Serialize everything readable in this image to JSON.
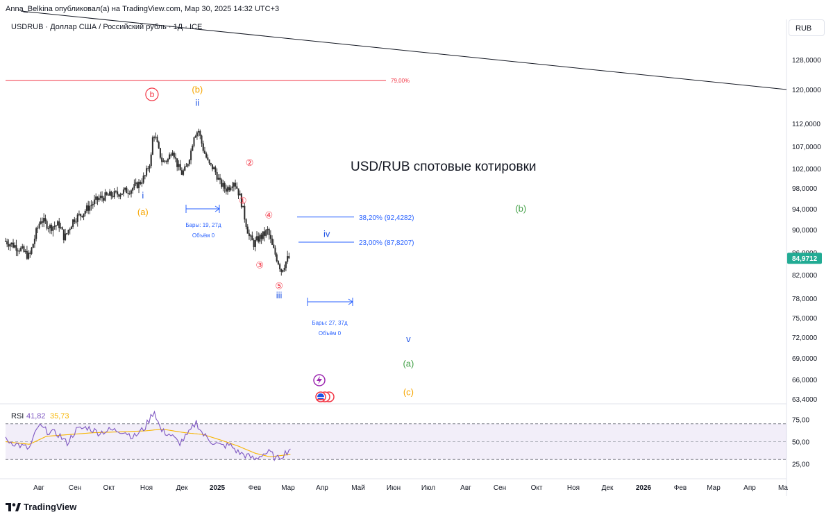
{
  "header": {
    "published_line": "Anna_Belkina опубликовал(а) на TradingView.com, Мар 30, 2025 14:32 UTC+3",
    "symbol_line": "USDRUB · Доллар США / Российский рубль · 1Д · ICE",
    "currency_button": "RUB"
  },
  "footer": {
    "brand": "TradingView"
  },
  "colors": {
    "up": "#26a69a",
    "down": "#ef5350",
    "candle": "#3a3a3a",
    "rsi": "#7e57c2",
    "rsi_ma": "#f7b500",
    "fib_red": "#f23645",
    "measure_blue": "#2962ff",
    "wave_red": "#f23645",
    "wave_orange": "#f7a600",
    "wave_blue": "#1e53e5",
    "wave_green": "#43a047",
    "last_price_bg": "#22ab94"
  },
  "chart_data": [
    {
      "type": "candlestick",
      "title": "USD/RUB спотовые котировки",
      "y_axis_labels": [
        "128,0000",
        "120,0000",
        "112,0000",
        "107,0000",
        "102,0000",
        "98,0000",
        "94,0000",
        "90,0000",
        "86,0000",
        "82,0000",
        "78,0000",
        "75,0000",
        "72,0000",
        "69,0000",
        "66,0000",
        "63,4000"
      ],
      "x_axis_labels": [
        "Авг",
        "Сен",
        "Окт",
        "Ноя",
        "Дек",
        "2025",
        "Фев",
        "Мар",
        "Апр",
        "Май",
        "Июн",
        "Июл",
        "Авг",
        "Сен",
        "Окт",
        "Ноя",
        "Дек",
        "2026",
        "Фев",
        "Мар",
        "Апр",
        "Ма"
      ],
      "last_price": "84,9712",
      "price_path": [
        [
          "2024-07-20",
          88.0
        ],
        [
          "2024-08-01",
          86.8
        ],
        [
          "2024-08-10",
          85.2
        ],
        [
          "2024-08-16",
          89.5
        ],
        [
          "2024-08-20",
          92.0
        ],
        [
          "2024-08-28",
          90.5
        ],
        [
          "2024-09-05",
          91.0
        ],
        [
          "2024-09-10",
          88.5
        ],
        [
          "2024-09-18",
          92.0
        ],
        [
          "2024-09-25",
          93.0
        ],
        [
          "2024-10-02",
          94.5
        ],
        [
          "2024-10-10",
          96.0
        ],
        [
          "2024-10-18",
          96.5
        ],
        [
          "2024-10-25",
          96.8
        ],
        [
          "2024-11-01",
          97.3
        ],
        [
          "2024-11-08",
          97.8
        ],
        [
          "2024-11-15",
          99.0
        ],
        [
          "2024-11-20",
          100.5
        ],
        [
          "2024-11-25",
          104.0
        ],
        [
          "2024-11-27",
          110.0
        ],
        [
          "2024-11-29",
          109.0
        ],
        [
          "2024-12-02",
          106.0
        ],
        [
          "2024-12-05",
          103.5
        ],
        [
          "2024-12-10",
          104.0
        ],
        [
          "2024-12-14",
          106.5
        ],
        [
          "2024-12-18",
          103.0
        ],
        [
          "2024-12-22",
          101.0
        ],
        [
          "2024-12-26",
          102.0
        ],
        [
          "2024-12-30",
          105.5
        ],
        [
          "2025-01-02",
          109.5
        ],
        [
          "2025-01-06",
          110.5
        ],
        [
          "2025-01-10",
          106.5
        ],
        [
          "2025-01-15",
          103.0
        ],
        [
          "2025-01-20",
          101.8
        ],
        [
          "2025-01-25",
          99.0
        ],
        [
          "2025-01-30",
          97.8
        ],
        [
          "2025-02-02",
          98.2
        ],
        [
          "2025-02-06",
          99.5
        ],
        [
          "2025-02-09",
          98.0
        ],
        [
          "2025-02-12",
          96.0
        ],
        [
          "2025-02-16",
          92.0
        ],
        [
          "2025-02-20",
          88.5
        ],
        [
          "2025-02-24",
          87.5
        ],
        [
          "2025-02-28",
          88.5
        ],
        [
          "2025-03-04",
          89.0
        ],
        [
          "2025-03-08",
          89.8
        ],
        [
          "2025-03-12",
          87.0
        ],
        [
          "2025-03-16",
          85.0
        ],
        [
          "2025-03-20",
          82.8
        ],
        [
          "2025-03-23",
          84.0
        ],
        [
          "2025-03-26",
          85.0
        ],
        [
          "2025-03-28",
          84.9712
        ]
      ],
      "annotations": {
        "fib_levels": [
          {
            "label": "79,00%"
          },
          {
            "label": "38,20% (92,4282)",
            "y": 92.4282
          },
          {
            "label": "23,00% (87,8207)",
            "y": 87.8207
          }
        ],
        "measurements": [
          {
            "bars": "Бары: 19, 27д",
            "volume": "Объём 0"
          },
          {
            "bars": "Бары: 27, 37д",
            "volume": "Объём 0"
          }
        ],
        "waves": [
          {
            "label": "b",
            "color": "wave_red",
            "circled": true,
            "date": "2024-11-26",
            "y": 118.2
          },
          {
            "label": "(b)",
            "color": "wave_orange",
            "date": "2025-01-05",
            "y": 119.3
          },
          {
            "label": "ii",
            "color": "wave_blue",
            "date": "2025-01-05",
            "y": 116.2
          },
          {
            "label": "i",
            "color": "wave_blue",
            "date": "2024-11-18",
            "y": 96.0
          },
          {
            "label": "(a)",
            "color": "wave_orange",
            "date": "2024-11-18",
            "y": 92.8
          },
          {
            "label": "①",
            "color": "wave_red",
            "date": "2025-02-14",
            "y": 95.0
          },
          {
            "label": "②",
            "color": "wave_red",
            "date": "2025-02-20",
            "y": 102.6
          },
          {
            "label": "③",
            "color": "wave_red",
            "date": "2025-03-01",
            "y": 83.2
          },
          {
            "label": "④",
            "color": "wave_red",
            "date": "2025-03-09",
            "y": 92.2
          },
          {
            "label": "⑤",
            "color": "wave_red",
            "date": "2025-03-18",
            "y": 79.6
          },
          {
            "label": "iii",
            "color": "wave_blue",
            "date": "2025-03-18",
            "y": 78.0
          },
          {
            "label": "iv",
            "color": "wave_blue",
            "date": "2025-04-29",
            "y": 88.7
          },
          {
            "label": "v",
            "color": "wave_blue",
            "date": "2025-07-10",
            "y": 71.3
          },
          {
            "label": "(a)",
            "color": "wave_green",
            "date": "2025-07-10",
            "y": 67.8
          },
          {
            "label": "(c)",
            "color": "wave_orange",
            "date": "2025-07-10",
            "y": 63.9
          },
          {
            "label": "(b)",
            "color": "wave_green",
            "date": "2025-10-17",
            "y": 93.5
          }
        ]
      }
    },
    {
      "type": "line",
      "title": "RSI",
      "series": [
        {
          "name": "RSI",
          "value": "41,82"
        },
        {
          "name": "MA",
          "value": "35,73"
        }
      ],
      "y_axis_labels": [
        "75,00",
        "50,00",
        "25,00"
      ],
      "ylim": [
        10,
        90
      ],
      "rsi_path": [
        [
          "2024-07-20",
          52
        ],
        [
          "2024-08-01",
          46
        ],
        [
          "2024-08-10",
          42
        ],
        [
          "2024-08-18",
          68
        ],
        [
          "2024-08-25",
          62
        ],
        [
          "2024-09-05",
          58
        ],
        [
          "2024-09-12",
          48
        ],
        [
          "2024-09-20",
          63
        ],
        [
          "2024-09-30",
          66
        ],
        [
          "2024-10-10",
          60
        ],
        [
          "2024-10-20",
          63
        ],
        [
          "2024-11-01",
          62
        ],
        [
          "2024-11-10",
          55
        ],
        [
          "2024-11-20",
          66
        ],
        [
          "2024-11-28",
          85
        ],
        [
          "2024-12-04",
          62
        ],
        [
          "2024-12-12",
          58
        ],
        [
          "2024-12-20",
          48
        ],
        [
          "2024-12-28",
          58
        ],
        [
          "2025-01-04",
          72
        ],
        [
          "2025-01-10",
          58
        ],
        [
          "2025-01-18",
          50
        ],
        [
          "2025-01-26",
          45
        ],
        [
          "2025-02-03",
          46
        ],
        [
          "2025-02-10",
          38
        ],
        [
          "2025-02-18",
          34
        ],
        [
          "2025-02-25",
          30
        ],
        [
          "2025-03-03",
          36
        ],
        [
          "2025-03-10",
          38
        ],
        [
          "2025-03-16",
          30
        ],
        [
          "2025-03-22",
          36
        ],
        [
          "2025-03-28",
          41.82
        ]
      ],
      "ma_path": [
        [
          "2024-07-20",
          50
        ],
        [
          "2024-08-10",
          47
        ],
        [
          "2024-08-25",
          56
        ],
        [
          "2024-09-15",
          58
        ],
        [
          "2024-10-05",
          60
        ],
        [
          "2024-10-30",
          61
        ],
        [
          "2024-11-20",
          62
        ],
        [
          "2024-12-05",
          64
        ],
        [
          "2024-12-25",
          60
        ],
        [
          "2025-01-10",
          58
        ],
        [
          "2025-01-25",
          52
        ],
        [
          "2025-02-10",
          45
        ],
        [
          "2025-02-25",
          37
        ],
        [
          "2025-03-10",
          33
        ],
        [
          "2025-03-28",
          35.73
        ]
      ]
    }
  ]
}
